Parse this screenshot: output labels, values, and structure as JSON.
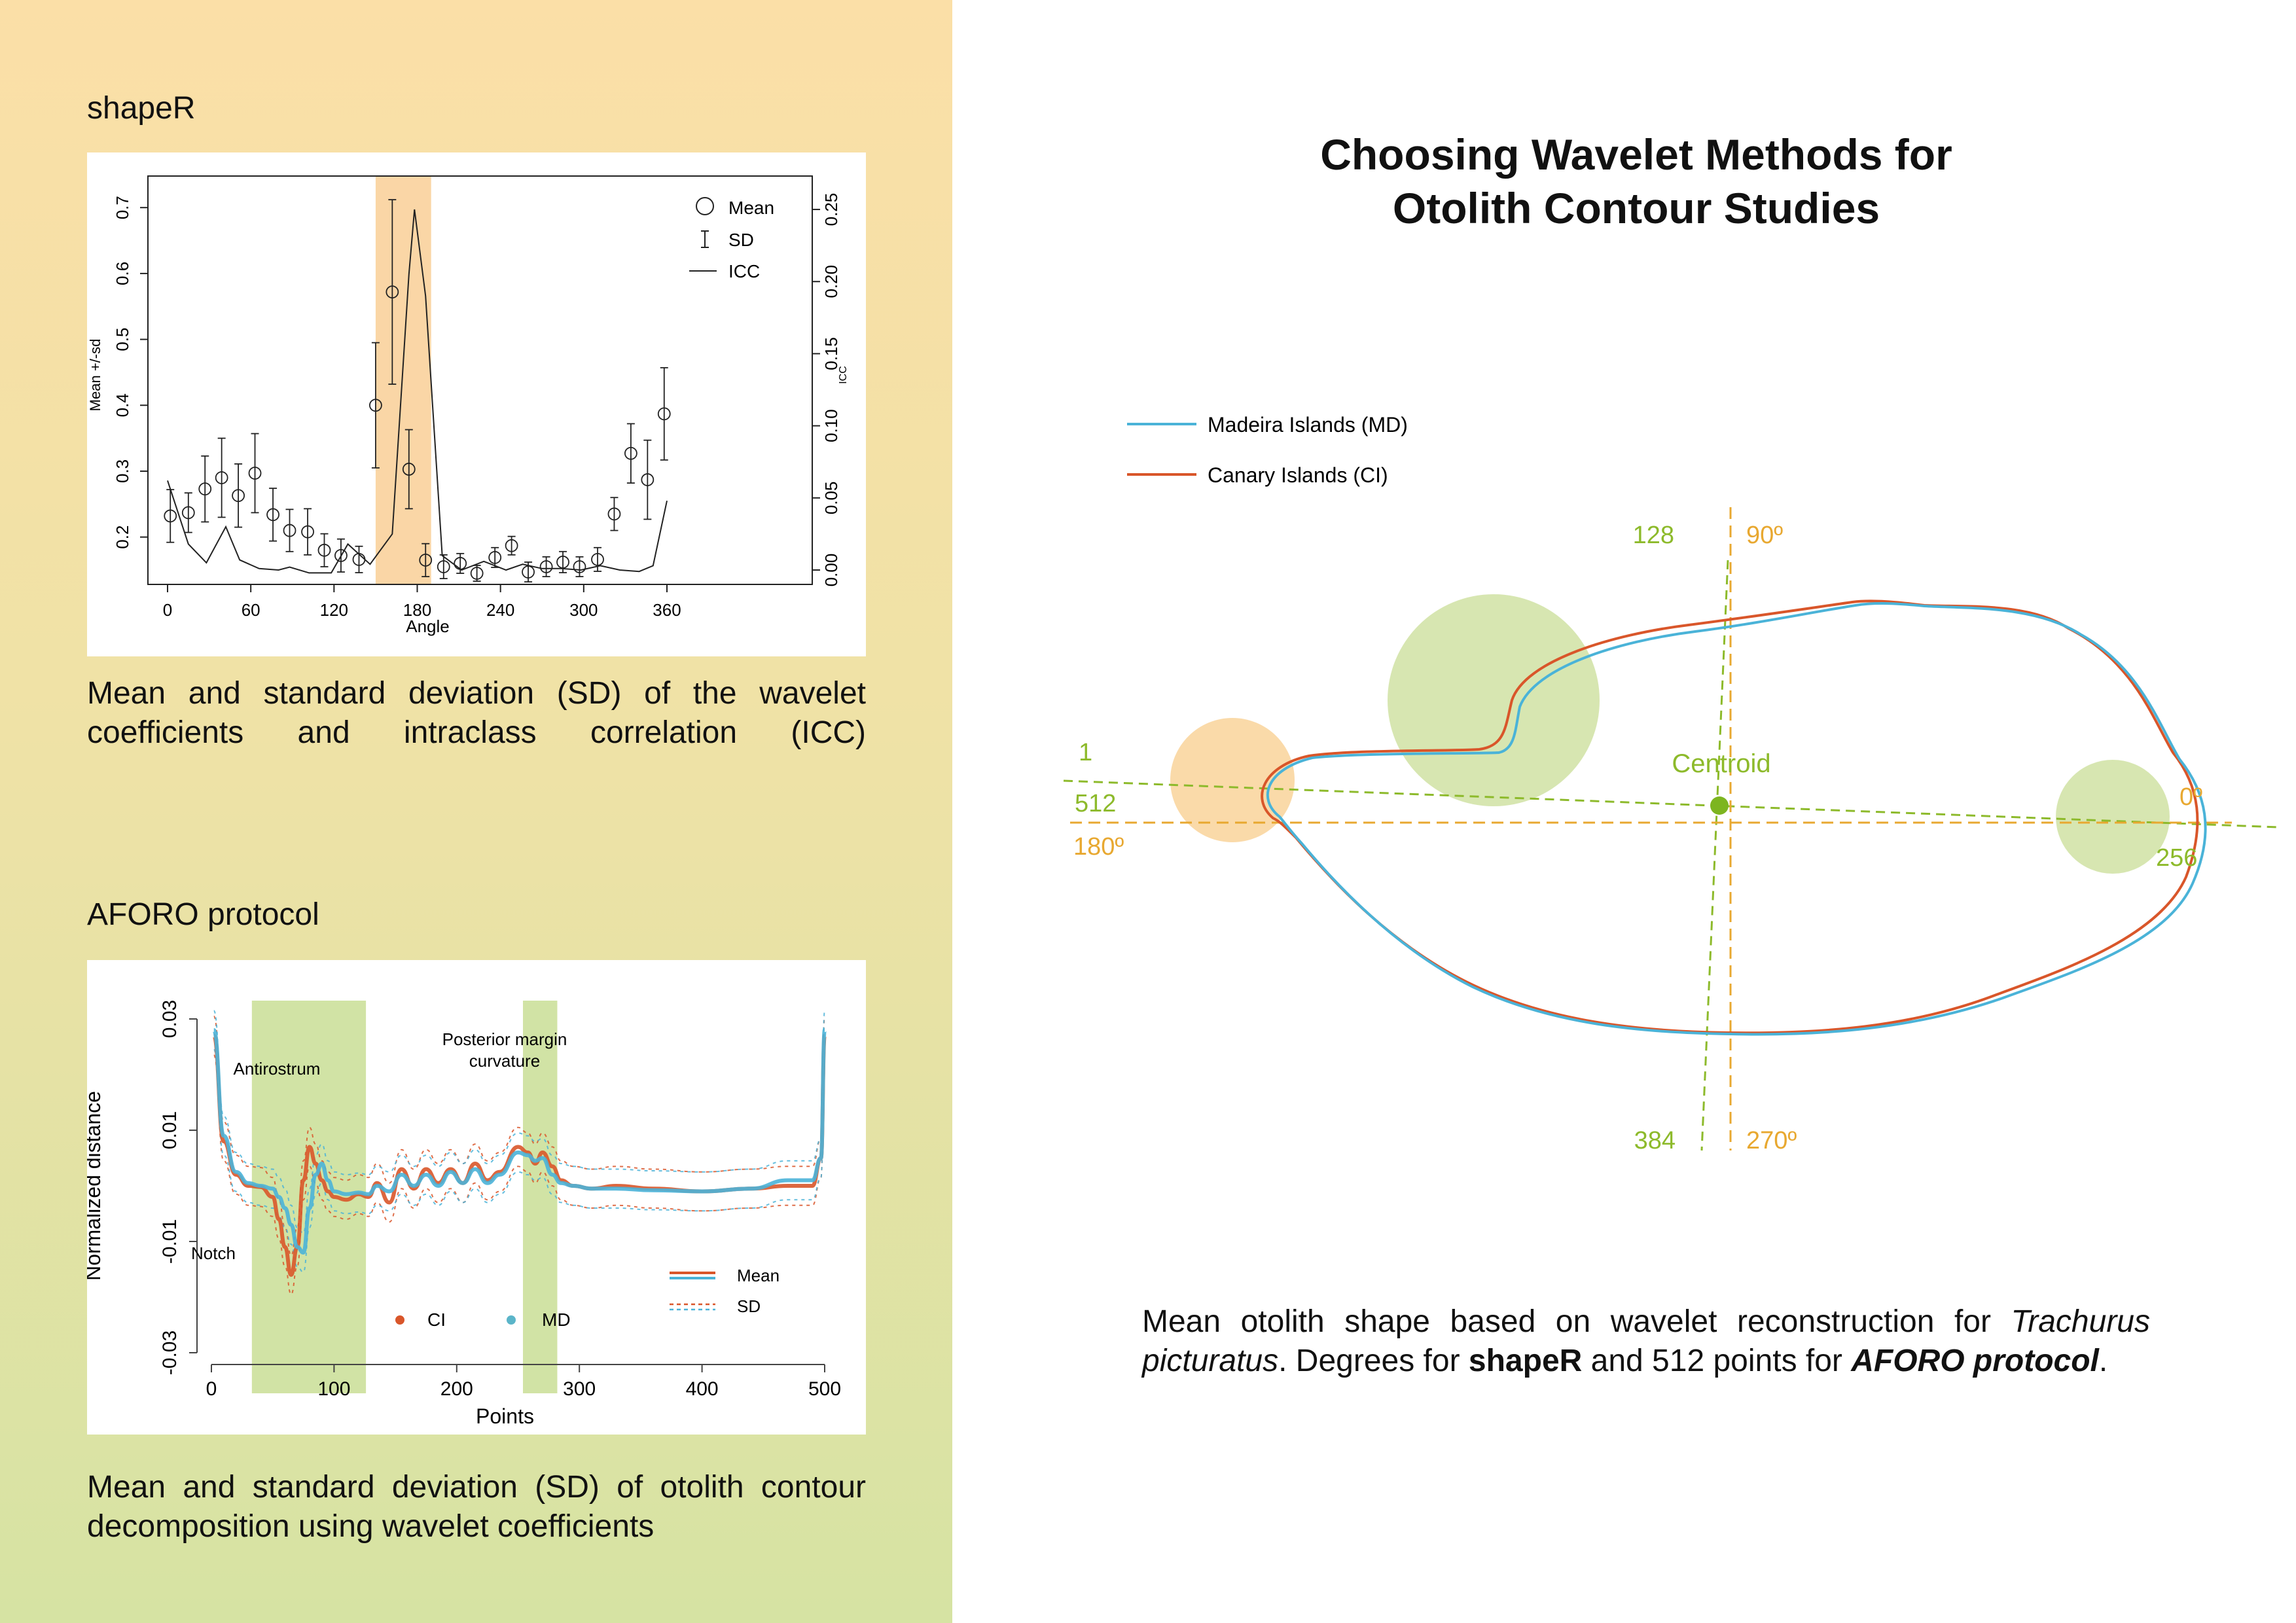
{
  "left": {
    "shaper_title": "shapeR",
    "shaper_caption": "Mean and standard deviation (SD) of the wavelet coefficients and  intraclass correlation (ICC)",
    "aforo_title": "AFORO protocol",
    "aforo_caption": "Mean and standard deviation (SD) of otolith contour decomposition using wavelet coefficients"
  },
  "right": {
    "title_line1": "Choosing Wavelet Methods for",
    "title_line2": "Otolith Contour Studies",
    "legend_md": "Madeira Islands (MD)",
    "legend_ci": "Canary Islands (CI)",
    "labels": {
      "p128": "128",
      "d90": "90º",
      "p1": "1",
      "p512": "512",
      "d180": "180º",
      "centroid": "Centroid",
      "d0": "0º",
      "p256": "256",
      "p384": "384",
      "d270": "270º"
    },
    "caption_part1": "Mean otolith shape based on wavelet reconstruction for ",
    "caption_species1": "Trachurus",
    "caption_species2": "picturatus",
    "caption_part2": ". Degrees for ",
    "caption_bold1": "shapeR",
    "caption_part3": " and 512 points for ",
    "caption_bold2": "AFORO protocol",
    "caption_end": ".",
    "colors": {
      "md": "#4ab3d8",
      "ci": "#d9562a",
      "green": "#8dba2b",
      "orange": "#e8a830"
    }
  },
  "chart_data": [
    {
      "type": "scatter",
      "title": "",
      "xlabel": "Angle",
      "ylabel": "Mean +/-sd",
      "y2label": "ICC",
      "xlim": [
        0,
        360
      ],
      "ylim": [
        0.15,
        0.73
      ],
      "y2lim": [
        0,
        0.265
      ],
      "xticks": [
        "0",
        "60",
        "120",
        "180",
        "240",
        "300",
        "360"
      ],
      "yticks": [
        "0.2",
        "0.3",
        "0.4",
        "0.5",
        "0.6",
        "0.7"
      ],
      "y2ticks": [
        "0.00",
        "0.05",
        "0.10",
        "0.15",
        "0.20",
        "0.25"
      ],
      "highlight_range": [
        150,
        190
      ],
      "legend": [
        "Mean",
        "SD",
        "ICC"
      ],
      "angle": [
        2,
        15,
        27,
        39,
        51,
        63,
        76,
        88,
        101,
        113,
        125,
        138,
        150,
        162,
        174,
        186,
        199,
        211,
        223,
        236,
        248,
        260,
        273,
        285,
        297,
        310,
        322,
        334,
        346,
        358
      ],
      "mean": [
        0.232,
        0.237,
        0.273,
        0.29,
        0.263,
        0.297,
        0.234,
        0.21,
        0.208,
        0.18,
        0.172,
        0.166,
        0.4,
        0.572,
        0.303,
        0.165,
        0.155,
        0.16,
        0.145,
        0.169,
        0.187,
        0.147,
        0.155,
        0.162,
        0.155,
        0.166,
        0.235,
        0.327,
        0.287,
        0.387
      ],
      "sd": [
        0.04,
        0.03,
        0.05,
        0.06,
        0.048,
        0.06,
        0.04,
        0.032,
        0.035,
        0.025,
        0.025,
        0.02,
        0.095,
        0.14,
        0.06,
        0.025,
        0.018,
        0.015,
        0.012,
        0.015,
        0.014,
        0.015,
        0.015,
        0.016,
        0.015,
        0.018,
        0.025,
        0.045,
        0.06,
        0.07
      ],
      "icc_angle": [
        0,
        15,
        28,
        42,
        52,
        66,
        80,
        88,
        102,
        118,
        130,
        146,
        162,
        174,
        178,
        186,
        198,
        212,
        228,
        244,
        256,
        270,
        284,
        298,
        312,
        326,
        340,
        350,
        360
      ],
      "icc": [
        0.062,
        0.018,
        0.005,
        0.03,
        0.007,
        0.001,
        0.0,
        0.002,
        -0.002,
        -0.002,
        0.018,
        0.004,
        0.025,
        0.205,
        0.25,
        0.19,
        0.01,
        0.0,
        0.006,
        0.0,
        0.004,
        0.001,
        0.001,
        0.0,
        0.003,
        0.0,
        -0.001,
        0.003,
        0.048
      ]
    },
    {
      "type": "line",
      "title": "",
      "xlabel": "Points",
      "ylabel": "Normalized distance",
      "xlim": [
        0,
        500
      ],
      "ylim": [
        -0.03,
        0.03
      ],
      "xticks": [
        "0",
        "100",
        "200",
        "300",
        "400",
        "500"
      ],
      "yticks": [
        "-0.03",
        "-0.01",
        "0.01",
        "0.03"
      ],
      "annotations": [
        "Antirostrum",
        "Posterior margin",
        "curvature",
        "Notch"
      ],
      "highlight_ranges": [
        [
          33,
          126
        ],
        [
          254,
          282
        ]
      ],
      "legend": [
        "Mean",
        "SD",
        "CI",
        "MD"
      ],
      "x": [
        2,
        10,
        20,
        30,
        40,
        50,
        55,
        60,
        65,
        70,
        75,
        80,
        85,
        90,
        95,
        100,
        110,
        120,
        128,
        135,
        145,
        155,
        165,
        175,
        185,
        195,
        205,
        215,
        225,
        235,
        250,
        258,
        264,
        270,
        278,
        285,
        295,
        310,
        330,
        360,
        400,
        440,
        470,
        490,
        497,
        500
      ],
      "series": [
        {
          "name": "CI",
          "values": [
            0.027,
            0.008,
            0.002,
            0.0,
            -0.0002,
            -0.002,
            -0.006,
            -0.011,
            -0.016,
            -0.011,
            0.001,
            0.007,
            0.004,
            0.001,
            -0.001,
            -0.002,
            -0.0025,
            -0.0015,
            -0.002,
            0.0005,
            -0.003,
            0.003,
            -0.0005,
            0.003,
            0.0005,
            0.003,
            0.0005,
            0.004,
            0.001,
            0.0025,
            0.007,
            0.006,
            0.004,
            0.006,
            0.0035,
            0.001,
            0.0,
            -0.0005,
            0.0,
            -0.0005,
            -0.001,
            -0.0005,
            0.0,
            0.0,
            0.005,
            0.027
          ]
        },
        {
          "name": "MD",
          "values": [
            0.028,
            0.009,
            0.0025,
            0.0005,
            0.0,
            -0.0005,
            -0.002,
            -0.004,
            -0.007,
            -0.011,
            -0.012,
            -0.004,
            0.002,
            0.004,
            0.001,
            -0.001,
            -0.0015,
            -0.0012,
            -0.0015,
            0.0,
            -0.001,
            0.002,
            0.0,
            0.002,
            0.0,
            0.0025,
            0.0005,
            0.003,
            0.0005,
            0.002,
            0.006,
            0.0055,
            0.0045,
            0.005,
            0.002,
            0.0005,
            0.0,
            -0.0005,
            -0.0005,
            -0.0008,
            -0.001,
            -0.0005,
            0.001,
            0.001,
            0.005,
            0.028
          ]
        }
      ]
    }
  ]
}
